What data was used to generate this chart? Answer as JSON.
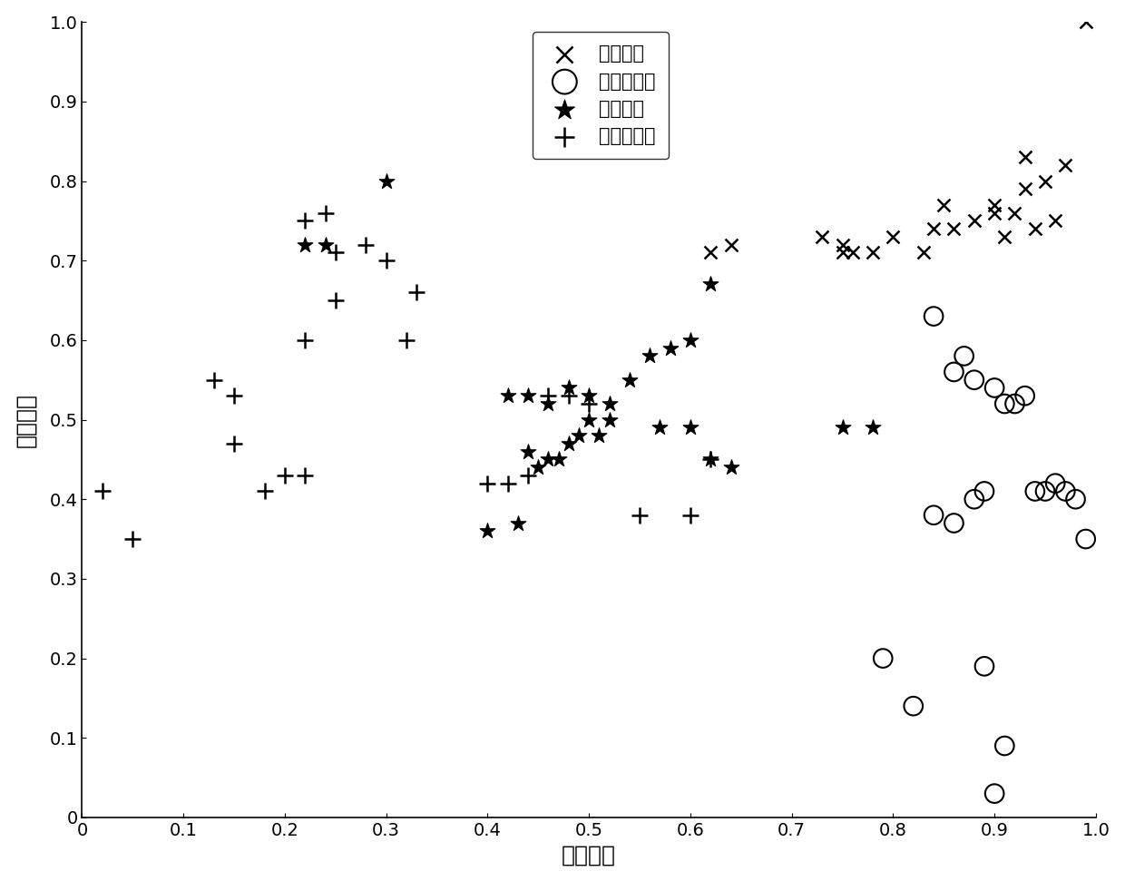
{
  "xlabel": "歪度指标",
  "ylabel": "峡度指标",
  "xlim": [
    0,
    1.0
  ],
  "ylim": [
    0,
    1.0
  ],
  "xticks": [
    0,
    0.1,
    0.2,
    0.3,
    0.4,
    0.5,
    0.6,
    0.7,
    0.8,
    0.9,
    1.0
  ],
  "yticks": [
    0,
    0.1,
    0.2,
    0.3,
    0.4,
    0.5,
    0.6,
    0.7,
    0.8,
    0.9,
    1.0
  ],
  "normal_rotor_label": "转子正常",
  "normal_rotor_x": [
    0.99,
    0.93,
    0.97,
    0.95,
    0.9,
    0.88,
    0.93,
    0.83,
    0.85,
    0.92,
    0.94,
    0.96,
    0.75,
    0.78,
    0.8,
    0.73,
    0.76,
    0.62,
    0.64,
    0.75,
    0.84,
    0.86,
    0.9,
    0.91
  ],
  "normal_rotor_y": [
    1.0,
    0.83,
    0.82,
    0.8,
    0.77,
    0.75,
    0.79,
    0.71,
    0.77,
    0.76,
    0.74,
    0.75,
    0.71,
    0.71,
    0.73,
    0.73,
    0.71,
    0.71,
    0.72,
    0.72,
    0.74,
    0.74,
    0.76,
    0.73
  ],
  "unbalanced_rotor_label": "转子不平衡",
  "unbalanced_rotor_x": [
    0.84,
    0.86,
    0.87,
    0.88,
    0.9,
    0.91,
    0.84,
    0.86,
    0.88,
    0.89,
    0.92,
    0.93,
    0.94,
    0.95,
    0.96,
    0.97,
    0.98,
    0.99,
    0.79,
    0.82,
    0.89,
    0.91,
    0.9
  ],
  "unbalanced_rotor_y": [
    0.63,
    0.56,
    0.58,
    0.55,
    0.54,
    0.52,
    0.38,
    0.37,
    0.4,
    0.41,
    0.52,
    0.53,
    0.41,
    0.41,
    0.42,
    0.41,
    0.4,
    0.35,
    0.2,
    0.14,
    0.19,
    0.09,
    0.03
  ],
  "friction_label": "动静碰摩",
  "friction_x": [
    0.3,
    0.22,
    0.24,
    0.62,
    0.6,
    0.58,
    0.56,
    0.42,
    0.44,
    0.46,
    0.48,
    0.5,
    0.52,
    0.44,
    0.46,
    0.48,
    0.5,
    0.52,
    0.54,
    0.6,
    0.62,
    0.64,
    0.57,
    0.45,
    0.47,
    0.4,
    0.43,
    0.75,
    0.78,
    0.49,
    0.51
  ],
  "friction_y": [
    0.8,
    0.72,
    0.72,
    0.67,
    0.6,
    0.59,
    0.58,
    0.53,
    0.53,
    0.52,
    0.54,
    0.53,
    0.52,
    0.46,
    0.45,
    0.47,
    0.5,
    0.5,
    0.55,
    0.49,
    0.45,
    0.44,
    0.49,
    0.44,
    0.45,
    0.36,
    0.37,
    0.49,
    0.49,
    0.48,
    0.48
  ],
  "looseness_label": "轴承座松动",
  "looseness_x": [
    0.02,
    0.05,
    0.15,
    0.18,
    0.2,
    0.22,
    0.22,
    0.24,
    0.25,
    0.28,
    0.3,
    0.33,
    0.4,
    0.42,
    0.44,
    0.46,
    0.48,
    0.5,
    0.55,
    0.6,
    0.62,
    0.13,
    0.15,
    0.22,
    0.25,
    0.32
  ],
  "looseness_y": [
    0.41,
    0.35,
    0.47,
    0.41,
    0.43,
    0.43,
    0.75,
    0.76,
    0.71,
    0.72,
    0.7,
    0.66,
    0.42,
    0.42,
    0.43,
    0.53,
    0.53,
    0.52,
    0.38,
    0.38,
    0.45,
    0.55,
    0.53,
    0.6,
    0.65,
    0.6
  ],
  "font_size_labels": 18,
  "font_size_ticks": 14,
  "font_size_legend": 15,
  "background_color": "#ffffff",
  "color": "black"
}
